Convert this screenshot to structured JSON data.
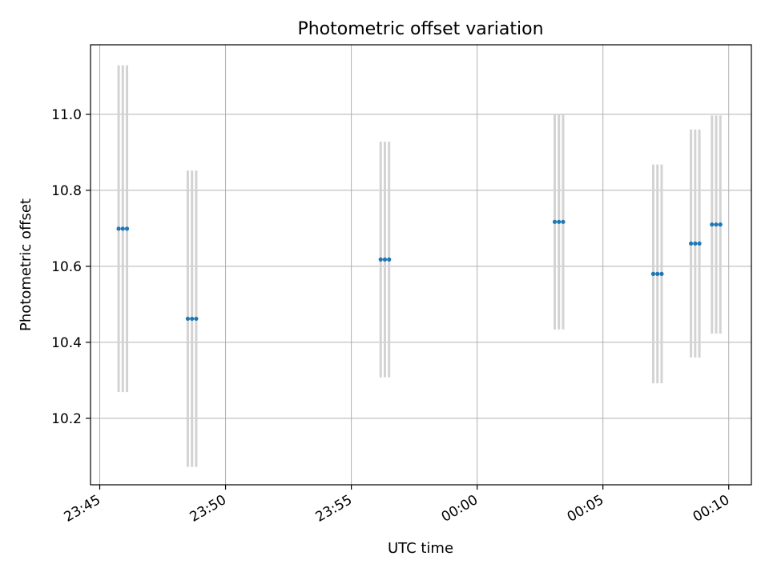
{
  "chart_data": {
    "type": "scatter",
    "title": "Photometric offset variation",
    "xlabel": "UTC time",
    "ylabel": "Photometric offset",
    "x_ticks": [
      "23:45",
      "23:50",
      "23:55",
      "00:00",
      "00:05",
      "00:10"
    ],
    "y_ticks": [
      "10.2",
      "10.4",
      "10.6",
      "10.8",
      "11.0"
    ],
    "xlim": [
      "23:44:38",
      "00:10:54"
    ],
    "ylim": [
      10.025,
      11.183
    ],
    "grid": true,
    "colors": {
      "marker": "#1f77b4",
      "errorbar": "#d3d3d3",
      "grid": "#b0b0b0"
    },
    "points": [
      {
        "t": "23:45:45",
        "y": 10.699,
        "err": 0.43
      },
      {
        "t": "23:45:55",
        "y": 10.699,
        "err": 0.43
      },
      {
        "t": "23:46:05",
        "y": 10.699,
        "err": 0.43
      },
      {
        "t": "23:48:30",
        "y": 10.462,
        "err": 0.39
      },
      {
        "t": "23:48:40",
        "y": 10.462,
        "err": 0.39
      },
      {
        "t": "23:48:50",
        "y": 10.462,
        "err": 0.39
      },
      {
        "t": "23:56:10",
        "y": 10.618,
        "err": 0.31
      },
      {
        "t": "23:56:20",
        "y": 10.618,
        "err": 0.31
      },
      {
        "t": "23:56:30",
        "y": 10.618,
        "err": 0.31
      },
      {
        "t": "00:03:05",
        "y": 10.717,
        "err": 0.283
      },
      {
        "t": "00:03:15",
        "y": 10.717,
        "err": 0.283
      },
      {
        "t": "00:03:25",
        "y": 10.717,
        "err": 0.283
      },
      {
        "t": "00:07:00",
        "y": 10.58,
        "err": 0.288
      },
      {
        "t": "00:07:10",
        "y": 10.58,
        "err": 0.288
      },
      {
        "t": "00:07:20",
        "y": 10.58,
        "err": 0.288
      },
      {
        "t": "00:08:30",
        "y": 10.66,
        "err": 0.3
      },
      {
        "t": "00:08:40",
        "y": 10.66,
        "err": 0.3
      },
      {
        "t": "00:08:50",
        "y": 10.66,
        "err": 0.3
      },
      {
        "t": "00:09:20",
        "y": 10.71,
        "err": 0.287
      },
      {
        "t": "00:09:30",
        "y": 10.71,
        "err": 0.287
      },
      {
        "t": "00:09:40",
        "y": 10.71,
        "err": 0.287
      }
    ]
  }
}
